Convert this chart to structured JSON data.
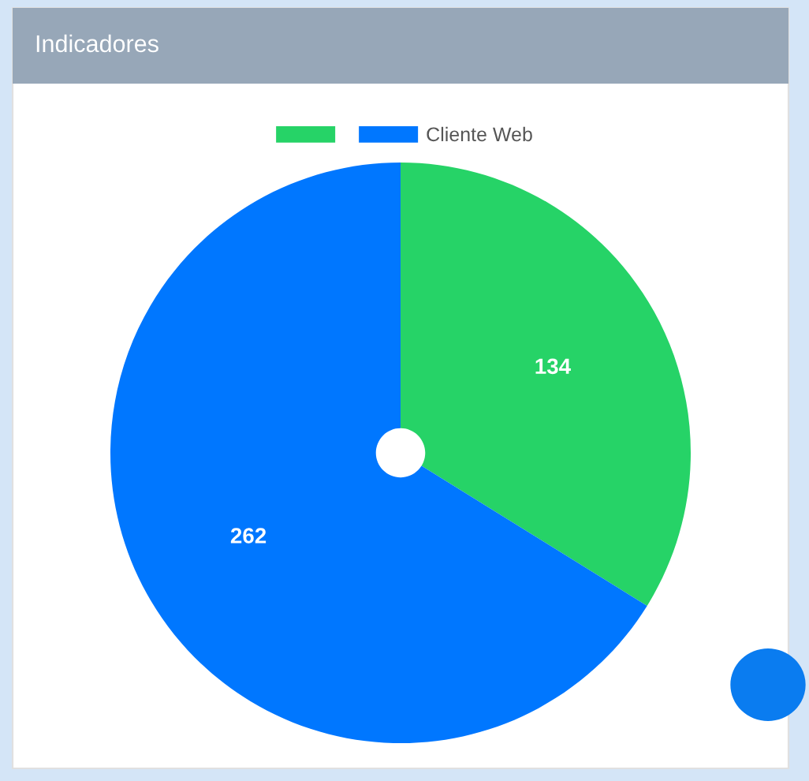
{
  "chart_data": {
    "type": "pie",
    "title": "Indicadores",
    "categories": [
      null,
      "Cliente Web"
    ],
    "values": [
      134,
      262
    ],
    "colors": [
      "#26d367",
      "#0077ff"
    ],
    "data_labels": true,
    "legend": "top"
  }
}
